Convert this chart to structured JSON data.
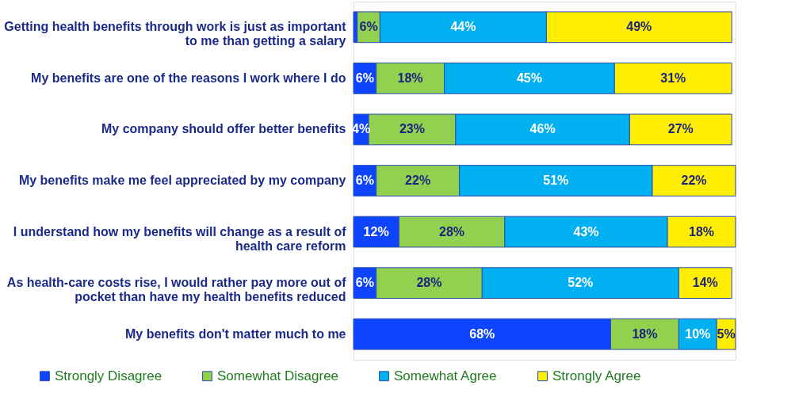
{
  "chart_data": {
    "type": "bar",
    "orientation": "horizontal",
    "stacked": true,
    "legend": "bottom",
    "grid": false,
    "tick_labels": "y",
    "categories": [
      "Getting health benefits through work is just as important to me than getting a salary",
      "My benefits are one of the reasons I work where I do",
      "My company should offer better benefits",
      "My benefits make me feel appreciated by my company",
      "I understand how my benefits will change as a result of health care reform",
      "As health-care costs rise, I would rather pay more out of pocket than have my health benefits reduced",
      "My benefits don't matter much to me"
    ],
    "series": [
      {
        "name": "Strongly Disagree",
        "color": "#0f44ff",
        "values": [
          1,
          6,
          4,
          6,
          12,
          6,
          68
        ],
        "value_labels": [
          null,
          "6%",
          "4%",
          "6%",
          "12%",
          "6%",
          "68%"
        ]
      },
      {
        "name": "Somewhat Disagree",
        "color": "#92d050",
        "values": [
          6,
          18,
          23,
          22,
          28,
          28,
          18
        ],
        "value_labels": [
          "6%",
          "18%",
          "23%",
          "22%",
          "28%",
          "28%",
          "18%"
        ]
      },
      {
        "name": "Somewhat Agree",
        "color": "#00b0f0",
        "values": [
          44,
          45,
          46,
          51,
          43,
          52,
          10
        ],
        "value_labels": [
          "44%",
          "45%",
          "46%",
          "51%",
          "43%",
          "52%",
          "10%"
        ]
      },
      {
        "name": "Strongly Agree",
        "color": "#ffee00",
        "values": [
          49,
          31,
          27,
          22,
          18,
          14,
          5
        ],
        "value_labels": [
          "49%",
          "31%",
          "27%",
          "22%",
          "18%",
          "14%",
          "5%"
        ]
      }
    ]
  }
}
